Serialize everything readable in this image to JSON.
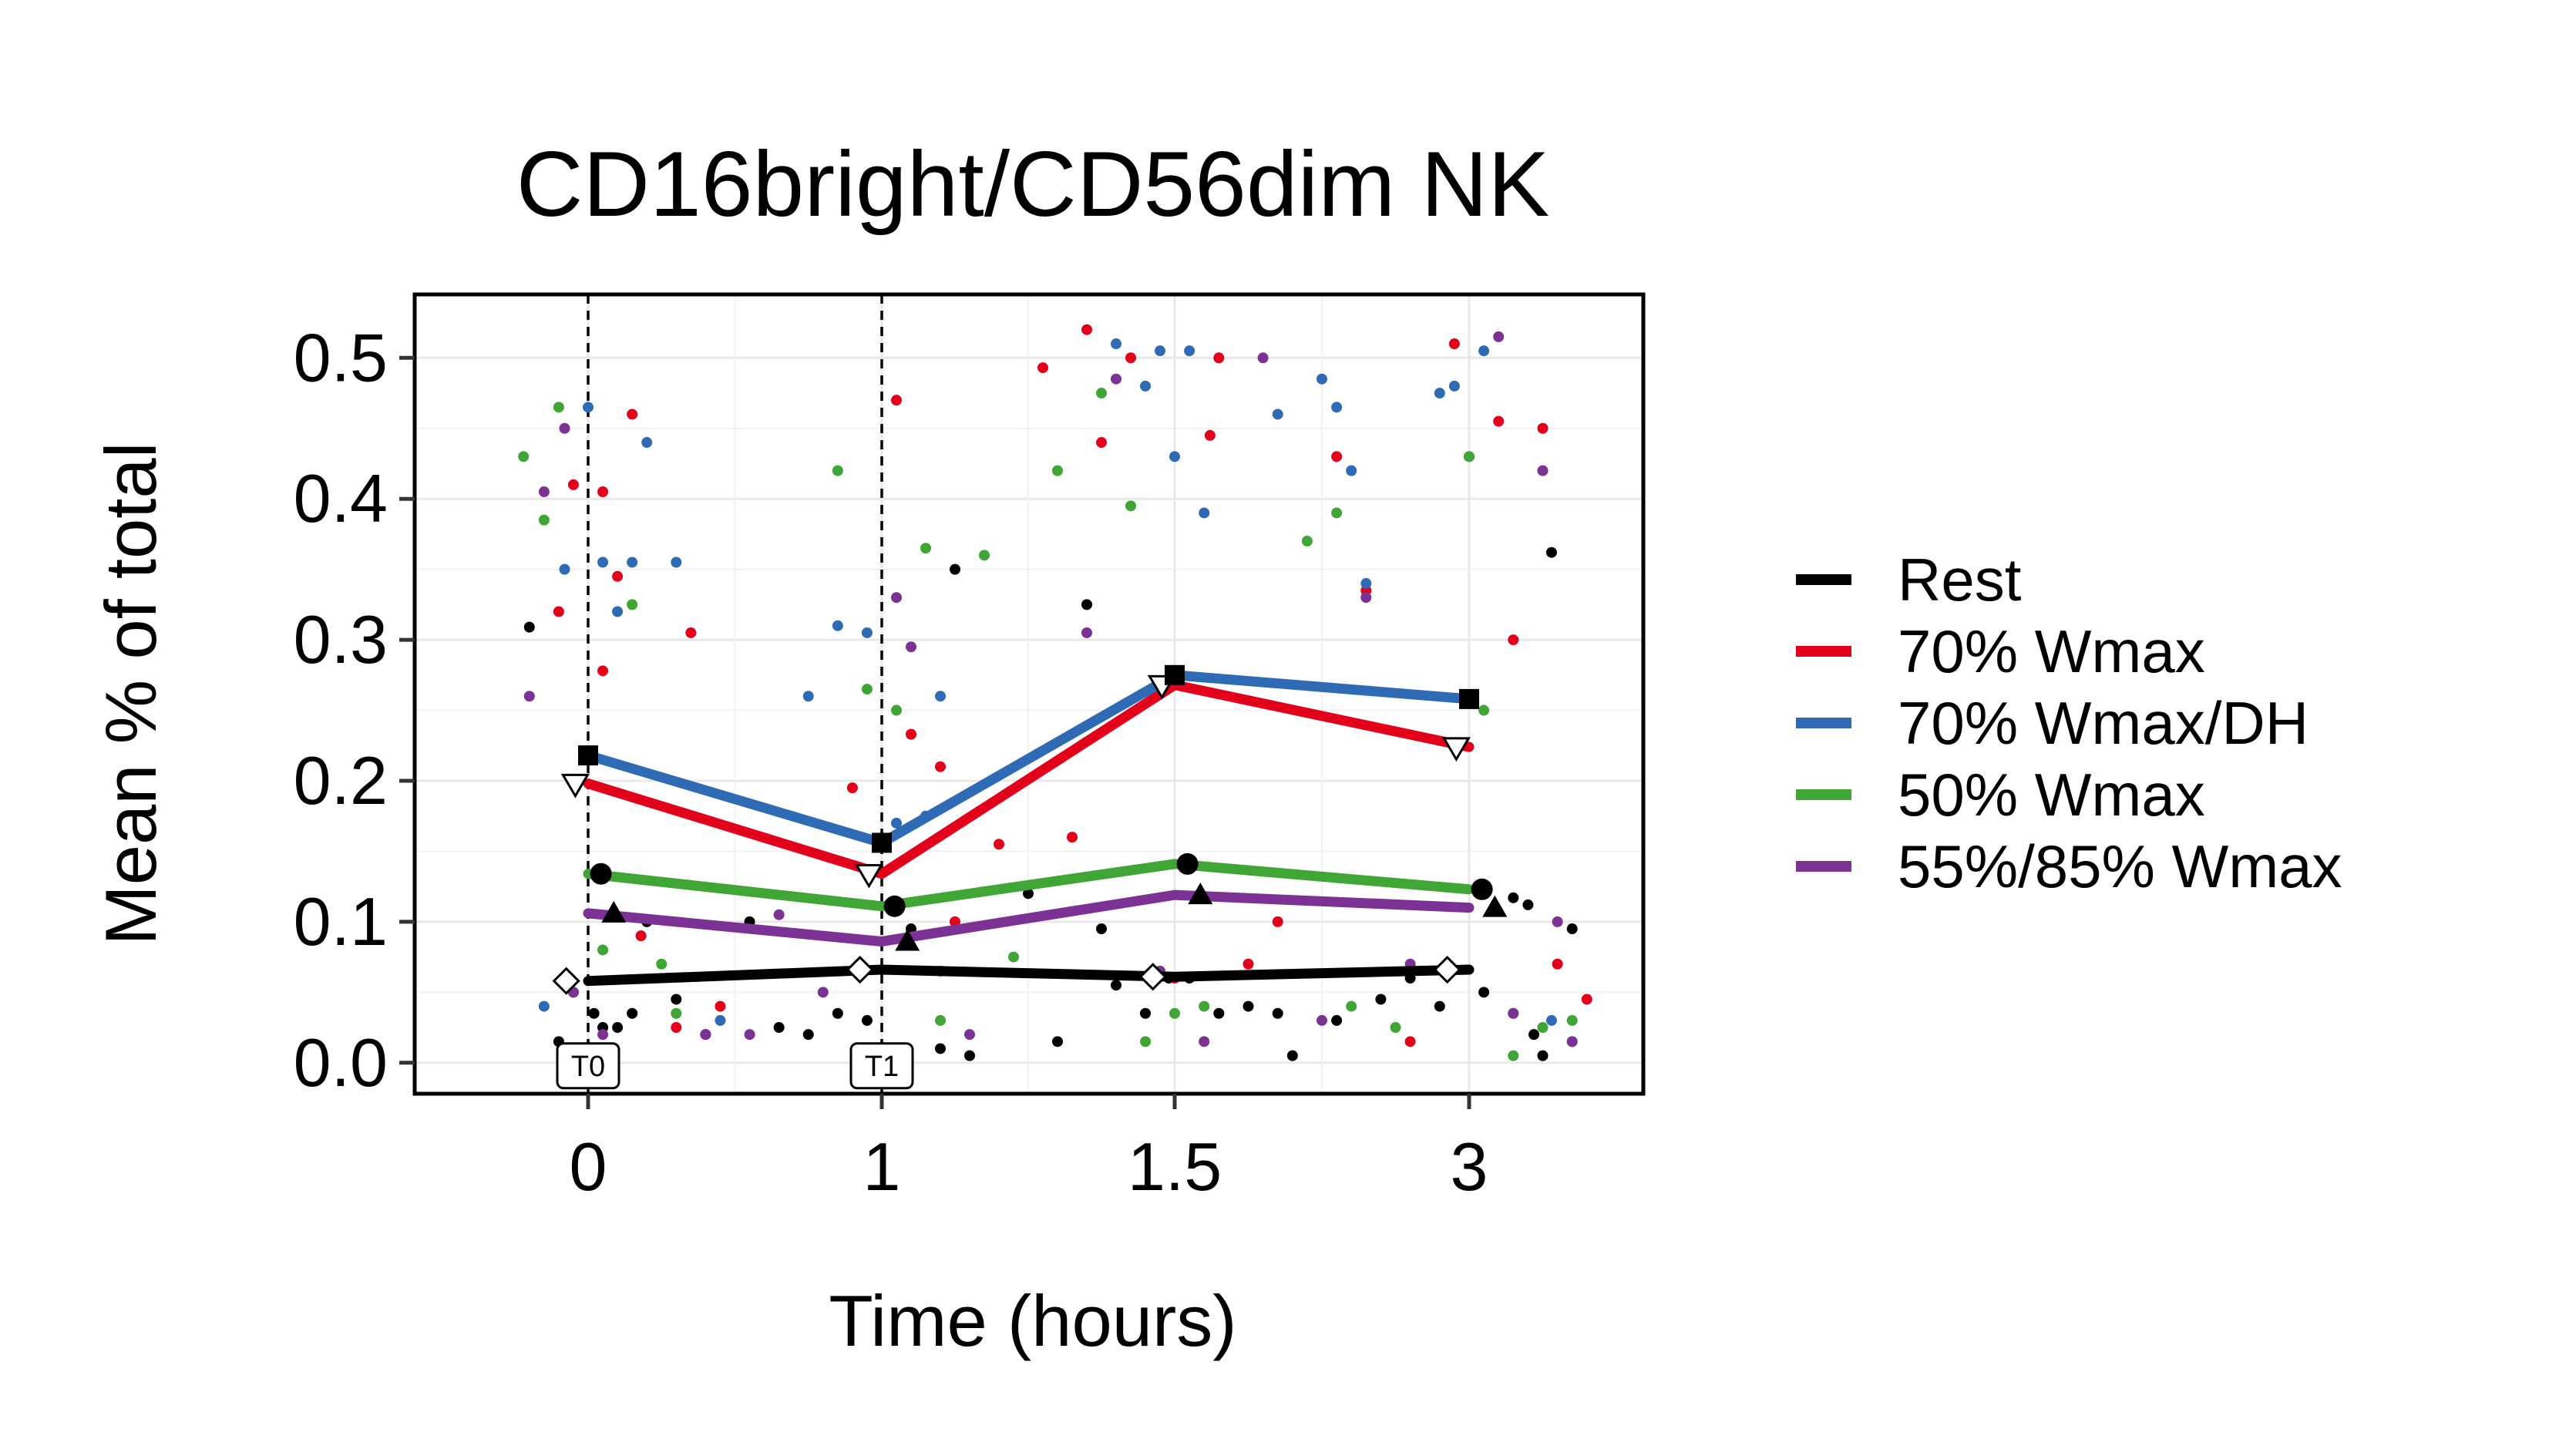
{
  "chart_data": {
    "type": "line",
    "title": "CD16bright/CD56dim NK",
    "xlabel": "Time (hours)",
    "ylabel": "Mean % of total",
    "x_categories": [
      "0",
      "1",
      "1.5",
      "3"
    ],
    "ylim": [
      -0.022,
      0.545
    ],
    "y_ticks": [
      0.0,
      0.1,
      0.2,
      0.3,
      0.4,
      0.5
    ],
    "y_tick_labels": [
      "0.0",
      "0.1",
      "0.2",
      "0.3",
      "0.4",
      "0.5"
    ],
    "grid": true,
    "legend_position": "right",
    "reference_lines": [
      {
        "category": "0",
        "label": "T0",
        "style": "dashed"
      },
      {
        "category": "1",
        "label": "T1",
        "style": "dashed"
      }
    ],
    "series": [
      {
        "name": "Rest",
        "color": "#000000",
        "marker": "diamond-open",
        "means": [
          0.058,
          0.066,
          0.061,
          0.066
        ]
      },
      {
        "name": "70% Wmax",
        "color": "#e3001b",
        "marker": "triangle-down-open",
        "means": [
          0.198,
          0.134,
          0.268,
          0.224
        ]
      },
      {
        "name": "70% Wmax/DH",
        "color": "#2f6bb5",
        "marker": "square",
        "means": [
          0.218,
          0.156,
          0.275,
          0.258
        ]
      },
      {
        "name": "50% Wmax",
        "color": "#3fa535",
        "marker": "circle",
        "means": [
          0.134,
          0.111,
          0.141,
          0.123
        ]
      },
      {
        "name": "55%/85% Wmax",
        "color": "#7b3294",
        "marker": "triangle-up",
        "means": [
          0.106,
          0.086,
          0.119,
          0.11
        ]
      }
    ],
    "points": {
      "Rest": [
        [
          -0.2,
          0.309
        ],
        [
          -0.1,
          0.015
        ],
        [
          -0.05,
          0.05
        ],
        [
          0.02,
          0.035
        ],
        [
          0.05,
          0.025
        ],
        [
          0.1,
          0.025
        ],
        [
          0.15,
          0.035
        ],
        [
          0.2,
          0.1
        ],
        [
          0.3,
          0.045
        ],
        [
          0.4,
          0.02
        ],
        [
          0.55,
          0.1
        ],
        [
          0.65,
          0.025
        ],
        [
          0.75,
          0.02
        ],
        [
          0.85,
          0.035
        ],
        [
          0.95,
          0.03
        ],
        [
          1.1,
          0.095
        ],
        [
          1.2,
          0.01
        ],
        [
          1.25,
          0.35
        ],
        [
          1.3,
          0.005
        ],
        [
          1.5,
          0.12
        ],
        [
          1.6,
          0.015
        ],
        [
          1.7,
          0.325
        ],
        [
          1.75,
          0.095
        ],
        [
          1.8,
          0.055
        ],
        [
          1.9,
          0.035
        ],
        [
          1.98,
          0.06
        ],
        [
          2.05,
          0.06
        ],
        [
          2.15,
          0.035
        ],
        [
          2.25,
          0.04
        ],
        [
          2.35,
          0.035
        ],
        [
          2.4,
          0.005
        ],
        [
          2.55,
          0.03
        ],
        [
          2.7,
          0.045
        ],
        [
          2.8,
          0.06
        ],
        [
          2.9,
          0.04
        ],
        [
          3.05,
          0.05
        ],
        [
          3.15,
          0.117
        ],
        [
          3.2,
          0.112
        ],
        [
          3.22,
          0.02
        ],
        [
          3.25,
          0.005
        ],
        [
          3.28,
          0.362
        ],
        [
          3.35,
          0.095
        ]
      ],
      "70% Wmax": [
        [
          -0.1,
          0.32
        ],
        [
          -0.05,
          0.41
        ],
        [
          -0.03,
          0.01
        ],
        [
          0.05,
          0.405
        ],
        [
          0.05,
          0.278
        ],
        [
          0.1,
          0.345
        ],
        [
          0.15,
          0.46
        ],
        [
          0.18,
          0.09
        ],
        [
          0.3,
          0.025
        ],
        [
          0.35,
          0.305
        ],
        [
          0.45,
          0.04
        ],
        [
          0.9,
          0.195
        ],
        [
          1.05,
          0.47
        ],
        [
          1.1,
          0.233
        ],
        [
          1.2,
          0.21
        ],
        [
          1.25,
          0.1
        ],
        [
          1.4,
          0.155
        ],
        [
          1.55,
          0.493
        ],
        [
          1.65,
          0.16
        ],
        [
          1.7,
          0.52
        ],
        [
          1.75,
          0.44
        ],
        [
          1.85,
          0.5
        ],
        [
          2.0,
          0.06
        ],
        [
          2.12,
          0.445
        ],
        [
          2.15,
          0.5
        ],
        [
          2.25,
          0.07
        ],
        [
          2.35,
          0.1
        ],
        [
          2.55,
          0.43
        ],
        [
          2.65,
          0.335
        ],
        [
          2.8,
          0.015
        ],
        [
          2.95,
          0.51
        ],
        [
          3.0,
          0.43
        ],
        [
          3.1,
          0.455
        ],
        [
          3.15,
          0.3
        ],
        [
          3.25,
          0.45
        ],
        [
          3.3,
          0.07
        ],
        [
          3.4,
          0.045
        ]
      ],
      "70% Wmax/DH": [
        [
          -0.15,
          0.04
        ],
        [
          -0.08,
          0.35
        ],
        [
          0.0,
          0.465
        ],
        [
          0.05,
          0.355
        ],
        [
          0.1,
          0.32
        ],
        [
          0.15,
          0.355
        ],
        [
          0.2,
          0.44
        ],
        [
          0.3,
          0.355
        ],
        [
          0.45,
          0.03
        ],
        [
          0.75,
          0.26
        ],
        [
          0.85,
          0.31
        ],
        [
          0.95,
          0.305
        ],
        [
          1.05,
          0.17
        ],
        [
          1.15,
          0.175
        ],
        [
          1.2,
          0.26
        ],
        [
          1.8,
          0.51
        ],
        [
          1.9,
          0.48
        ],
        [
          1.95,
          0.505
        ],
        [
          2.0,
          0.43
        ],
        [
          2.05,
          0.505
        ],
        [
          2.1,
          0.39
        ],
        [
          2.35,
          0.46
        ],
        [
          2.5,
          0.485
        ],
        [
          2.55,
          0.465
        ],
        [
          2.6,
          0.42
        ],
        [
          2.65,
          0.34
        ],
        [
          2.9,
          0.475
        ],
        [
          2.95,
          0.48
        ],
        [
          3.05,
          0.505
        ],
        [
          3.15,
          0.035
        ],
        [
          3.28,
          0.03
        ],
        [
          3.35,
          0.015
        ]
      ],
      "50% Wmax": [
        [
          -0.22,
          0.43
        ],
        [
          -0.15,
          0.385
        ],
        [
          -0.1,
          0.465
        ],
        [
          -0.05,
          0.01
        ],
        [
          0.05,
          0.08
        ],
        [
          0.15,
          0.325
        ],
        [
          0.25,
          0.07
        ],
        [
          0.3,
          0.035
        ],
        [
          0.85,
          0.42
        ],
        [
          0.95,
          0.265
        ],
        [
          1.05,
          0.25
        ],
        [
          1.15,
          0.365
        ],
        [
          1.2,
          0.03
        ],
        [
          1.35,
          0.36
        ],
        [
          1.45,
          0.075
        ],
        [
          1.6,
          0.42
        ],
        [
          1.75,
          0.475
        ],
        [
          1.85,
          0.395
        ],
        [
          1.9,
          0.015
        ],
        [
          2.0,
          0.035
        ],
        [
          2.1,
          0.04
        ],
        [
          2.45,
          0.37
        ],
        [
          2.55,
          0.39
        ],
        [
          2.6,
          0.04
        ],
        [
          2.75,
          0.025
        ],
        [
          3.0,
          0.43
        ],
        [
          3.05,
          0.25
        ],
        [
          3.15,
          0.005
        ],
        [
          3.25,
          0.025
        ],
        [
          3.35,
          0.03
        ]
      ],
      "55%/85% Wmax": [
        [
          -0.2,
          0.26
        ],
        [
          -0.15,
          0.405
        ],
        [
          -0.08,
          0.45
        ],
        [
          -0.05,
          0.05
        ],
        [
          0.05,
          0.02
        ],
        [
          0.4,
          0.02
        ],
        [
          0.55,
          0.02
        ],
        [
          0.65,
          0.105
        ],
        [
          0.8,
          0.05
        ],
        [
          0.95,
          0.005
        ],
        [
          1.05,
          0.33
        ],
        [
          1.1,
          0.295
        ],
        [
          1.2,
          0.065
        ],
        [
          1.3,
          0.02
        ],
        [
          1.7,
          0.305
        ],
        [
          1.8,
          0.485
        ],
        [
          1.95,
          0.065
        ],
        [
          2.1,
          0.015
        ],
        [
          2.3,
          0.5
        ],
        [
          2.5,
          0.03
        ],
        [
          2.65,
          0.33
        ],
        [
          2.8,
          0.07
        ],
        [
          3.1,
          0.515
        ],
        [
          3.15,
          0.035
        ],
        [
          3.25,
          0.42
        ],
        [
          3.3,
          0.1
        ],
        [
          3.35,
          0.015
        ]
      ]
    }
  }
}
